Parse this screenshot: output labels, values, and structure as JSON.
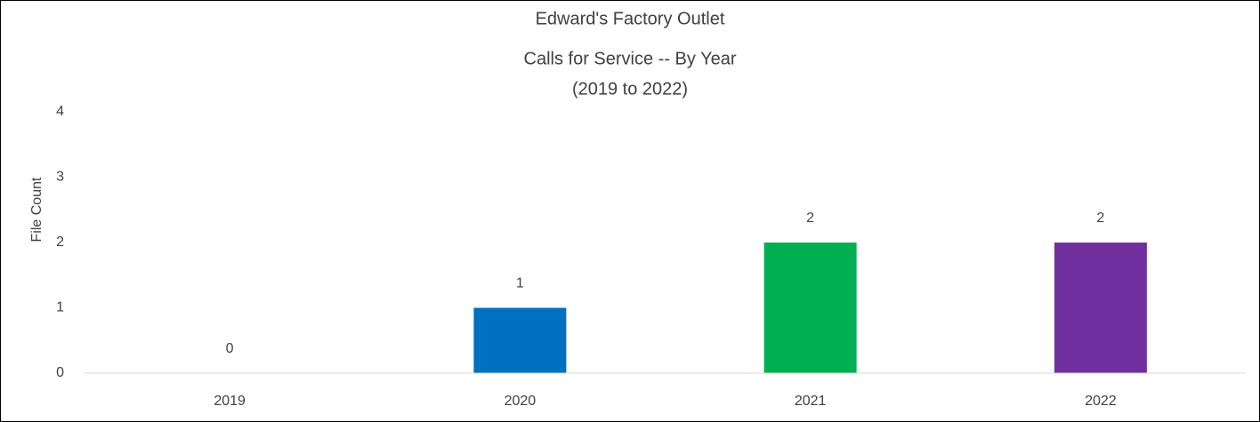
{
  "chart_data": {
    "type": "bar",
    "title": [
      "Edward's Factory Outlet",
      "Calls for Service -- By Year",
      "(2019 to 2022)"
    ],
    "y_label": "File Count",
    "categories": [
      "2019",
      "2020",
      "2021",
      "2022"
    ],
    "values": [
      0,
      1,
      2,
      2
    ],
    "colors": [
      "#4472c4",
      "#0070c0",
      "#00b050",
      "#7030a0"
    ],
    "ylim": [
      0,
      4
    ],
    "yticks": [
      0,
      1,
      2,
      3,
      4
    ],
    "grid": false,
    "data_labels": true
  }
}
